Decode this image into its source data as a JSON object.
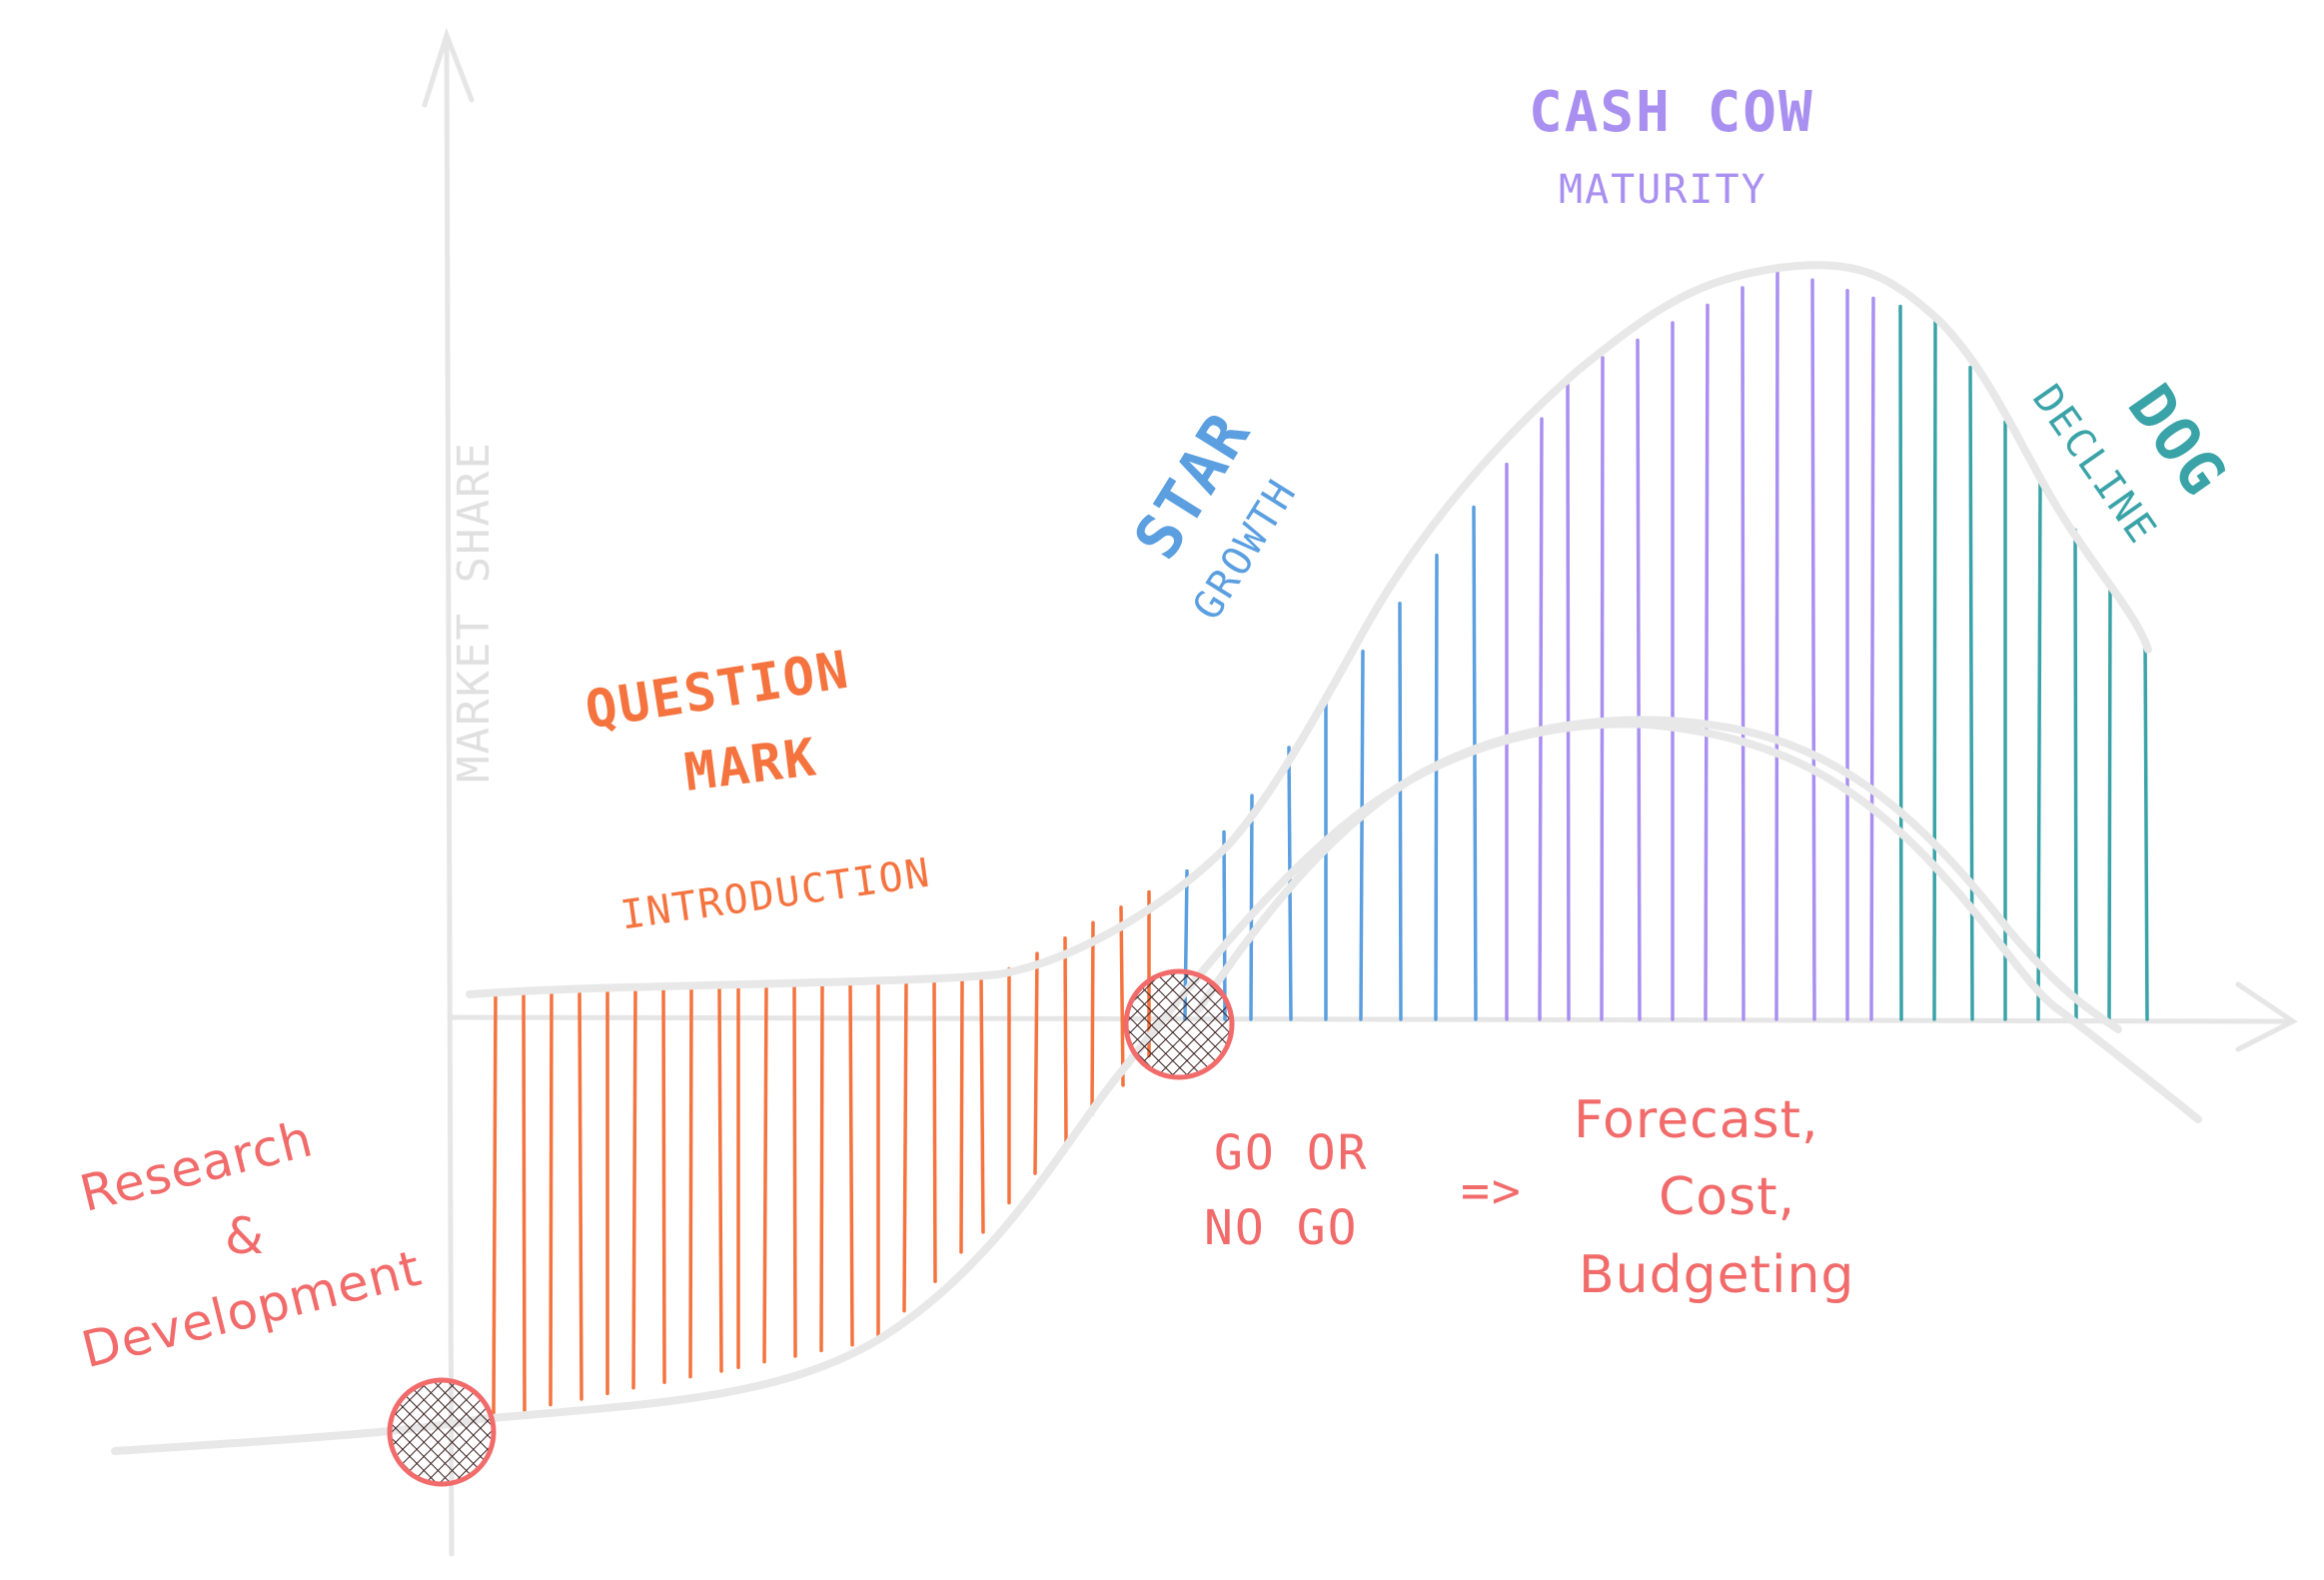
{
  "axis": {
    "y_label": "MARKET SHARE"
  },
  "stages": {
    "question_mark": {
      "title_line1": "QUESTION",
      "title_line2": "MARK",
      "subtitle": "INTRODUCTION",
      "color": "#f4733e"
    },
    "star": {
      "title": "STAR",
      "subtitle": "GROWTH",
      "color": "#5b9fe0"
    },
    "cash_cow": {
      "title": "CASH COW",
      "subtitle": "MATURITY",
      "color": "#a98ff0"
    },
    "dog": {
      "title": "DOG",
      "subtitle": "DECLINE",
      "color": "#3aa3a8"
    }
  },
  "notes": {
    "rnd_line1": "Research",
    "rnd_line2": "&",
    "rnd_line3": "Development",
    "go_line1": "GO OR",
    "go_line2": "NO GO",
    "arrow": "=>",
    "plan_line1": "Forecast,",
    "plan_line2": "Cost,",
    "plan_line3": "Budgeting",
    "color": "#f26b6b"
  },
  "colors": {
    "axis": "#e6e6e6",
    "curve": "#e8e8e8",
    "milestone_fill": "#fdd2d2",
    "milestone_stroke": "#f26b6b",
    "hatch": "#3a1f1f"
  }
}
